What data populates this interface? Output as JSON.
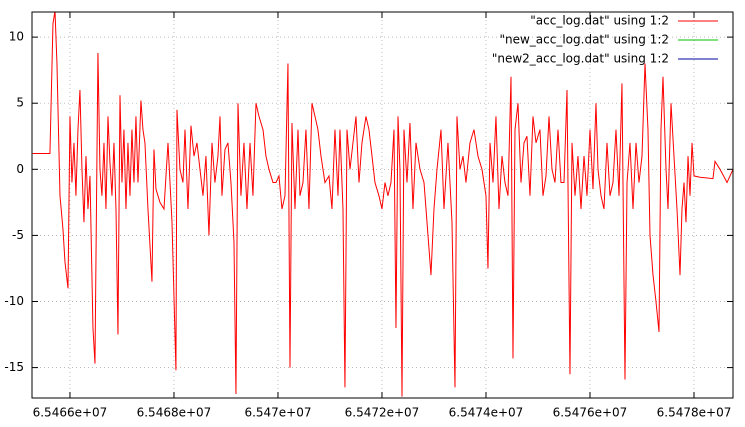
{
  "chart_data": {
    "type": "line",
    "xlim": [
      65465270,
      65478750
    ],
    "ylim": [
      -17.3,
      11.9
    ],
    "xticks": [
      {
        "value": 65466000,
        "label": "6.5466e+07"
      },
      {
        "value": 65468000,
        "label": "6.5468e+07"
      },
      {
        "value": 65470000,
        "label": "6.547e+07"
      },
      {
        "value": 65472000,
        "label": "6.5472e+07"
      },
      {
        "value": 65474000,
        "label": "6.5474e+07"
      },
      {
        "value": 65476000,
        "label": "6.5476e+07"
      },
      {
        "value": 65478000,
        "label": "6.5478e+07"
      }
    ],
    "yticks": [
      -15,
      -10,
      -5,
      0,
      5,
      10
    ],
    "grid": true,
    "legend": "top-right",
    "series": [
      {
        "name": "\"acc_log.dat\" using 1:2",
        "color": "#ff0000",
        "x": [
          65465270,
          65465615,
          65465673,
          65465712,
          65465750,
          65465808,
          65465865,
          65465904,
          65465962,
          65466000,
          65466038,
          65466077,
          65466115,
          65466154,
          65466192,
          65466231,
          65466269,
          65466308,
          65466346,
          65466385,
          65466442,
          65466481,
          65466519,
          65466538,
          65466577,
          65466615,
          65466654,
          65466692,
          65466731,
          65466769,
          65466808,
          65466846,
          65466885,
          65466923,
          65466962,
          65467000,
          65467038,
          65467077,
          65467115,
          65467154,
          65467192,
          65467231,
          65467269,
          65467308,
          65467365,
          65467404,
          65467442,
          65467500,
          65467577,
          65467615,
          65467654,
          65467731,
          65467808,
          65467885,
          65467962,
          65468038,
          65468058,
          65468115,
          65468173,
          65468212,
          65468269,
          65468327,
          65468385,
          65468442,
          65468500,
          65468558,
          65468615,
          65468673,
          65468731,
          65468788,
          65468846,
          65468885,
          65468923,
          65468981,
          65469038,
          65469096,
          65469154,
          65469192,
          65469231,
          65469288,
          65469346,
          65469404,
          65469462,
          65469519,
          65469577,
          65469635,
          65469712,
          65469769,
          65469827,
          65469904,
          65469962,
          65470019,
          65470077,
          65470135,
          65470192,
          65470231,
          65470269,
          65470327,
          65470385,
          65470423,
          65470481,
          65470538,
          65470596,
          65470654,
          65470712,
          65470769,
          65470827,
          65470904,
          65470981,
          65471038,
          65471096,
          65471154,
          65471192,
          65471250,
          65471288,
          65471327,
          65471385,
          65471442,
          65471500,
          65471558,
          65471615,
          65471692,
          65471750,
          65471808,
          65471865,
          65471942,
          65472000,
          65472058,
          65472115,
          65472173,
          65472231,
          65472269,
          65472308,
          65472346,
          65472385,
          65472423,
          65472481,
          65472538,
          65472596,
          65472654,
          65472731,
          65472808,
          65472885,
          65472942,
          65473000,
          65473058,
          65473135,
          65473192,
          65473269,
          65473346,
          65473404,
          65473442,
          65473500,
          65473558,
          65473615,
          65473692,
          65473769,
          65473846,
          65473923,
          65474000,
          65474038,
          65474077,
          65474135,
          65474192,
          65474250,
          65474308,
          65474365,
          65474423,
          65474481,
          65474519,
          65474558,
          65474615,
          65474673,
          65474731,
          65474788,
          65474846,
          65474904,
          65474962,
          65475038,
          65475096,
          65475154,
          65475212,
          65475269,
          65475327,
          65475385,
          65475442,
          65475500,
          65475558,
          65475615,
          65475654,
          65475712,
          65475769,
          65475827,
          65475885,
          65475942,
          65476000,
          65476058,
          65476115,
          65476154,
          65476212,
          65476269,
          65476327,
          65476385,
          65476442,
          65476500,
          65476558,
          65476615,
          65476673,
          65476712,
          65476769,
          65476827,
          65476885,
          65476942,
          65477000,
          65477058,
          65477115,
          65477154,
          65477212,
          65477269,
          65477327,
          65477365,
          65477404,
          65477462,
          65477500,
          65477558,
          65477615,
          65477673,
          65477731,
          65477769,
          65477808,
          65477846,
          65477885,
          65477923,
          65477962,
          65478000,
          65478115,
          65478365,
          65478404,
          65478500,
          65478635,
          65478750
        ],
        "values": [
          1.2,
          1.2,
          11,
          12,
          8,
          -2,
          -4.5,
          -7,
          -9,
          4,
          -1,
          2,
          -2,
          3,
          6,
          0,
          -4,
          1,
          -3,
          -0.5,
          -12,
          -14.7,
          1,
          8.8,
          0,
          -2,
          2,
          -3,
          4,
          0.5,
          -2,
          2,
          -3,
          -12.5,
          5.6,
          -1,
          3,
          -3,
          2,
          -2,
          3,
          -1,
          4,
          -1,
          5.2,
          3,
          2,
          -3,
          -8.5,
          1.5,
          -1.5,
          -2.5,
          -3,
          2,
          -4,
          -15.2,
          4.5,
          0,
          -1,
          3,
          -3,
          3.3,
          1,
          2,
          0,
          -2,
          1,
          -5,
          2,
          -1,
          1,
          4,
          -2,
          1.5,
          2,
          -1,
          -5.5,
          -17,
          5,
          -2,
          2,
          -3,
          2,
          -2,
          5,
          4,
          3,
          1,
          0,
          -1,
          -1,
          -0.5,
          -3,
          -2,
          8,
          -15,
          3.5,
          -3,
          3,
          -2,
          -1,
          3,
          -3,
          5,
          4,
          3,
          1,
          -1,
          -0.5,
          -3,
          3,
          -2,
          3,
          -3,
          -16.5,
          3,
          0,
          2,
          4,
          -1,
          2,
          4,
          3,
          1,
          -1,
          -2,
          -3,
          -1,
          -2,
          -1,
          3,
          -12,
          4,
          0,
          -17.2,
          3,
          -1,
          3.5,
          -3,
          2,
          0,
          -1,
          -5,
          -8,
          -3,
          0,
          3,
          -3,
          2,
          -4,
          -16.5,
          4,
          0,
          1,
          -1,
          2,
          3,
          1,
          0,
          -2,
          -7.5,
          2,
          -1,
          4,
          -3,
          1,
          -1,
          -2,
          7,
          -14.3,
          3,
          5,
          -1,
          2,
          2.5,
          -2,
          4,
          2,
          3,
          -2,
          -0.5,
          4,
          0,
          -1,
          3,
          -1,
          -1,
          6,
          -15.5,
          2,
          -2,
          1,
          -3,
          1,
          -2,
          3,
          -1.5,
          5,
          0,
          -2,
          -3,
          2,
          -2,
          -1,
          3,
          -2,
          6.5,
          -15.9,
          -1,
          2,
          -3,
          2,
          -1,
          1,
          8,
          3,
          -5,
          -8,
          -10,
          -12.3,
          3,
          7,
          0,
          -3,
          5,
          1,
          -3,
          -8,
          -3,
          -1,
          -4,
          1,
          -2,
          2,
          -0.5,
          -0.6,
          -0.7,
          0.6,
          0,
          -1,
          0
        ]
      },
      {
        "name": "\"new_acc_log.dat\" using 1:2",
        "color": "#00c000",
        "x": [],
        "values": []
      },
      {
        "name": "\"new2_acc_log.dat\" using 1:2",
        "color": "#0000a0",
        "x": [],
        "values": []
      }
    ]
  }
}
